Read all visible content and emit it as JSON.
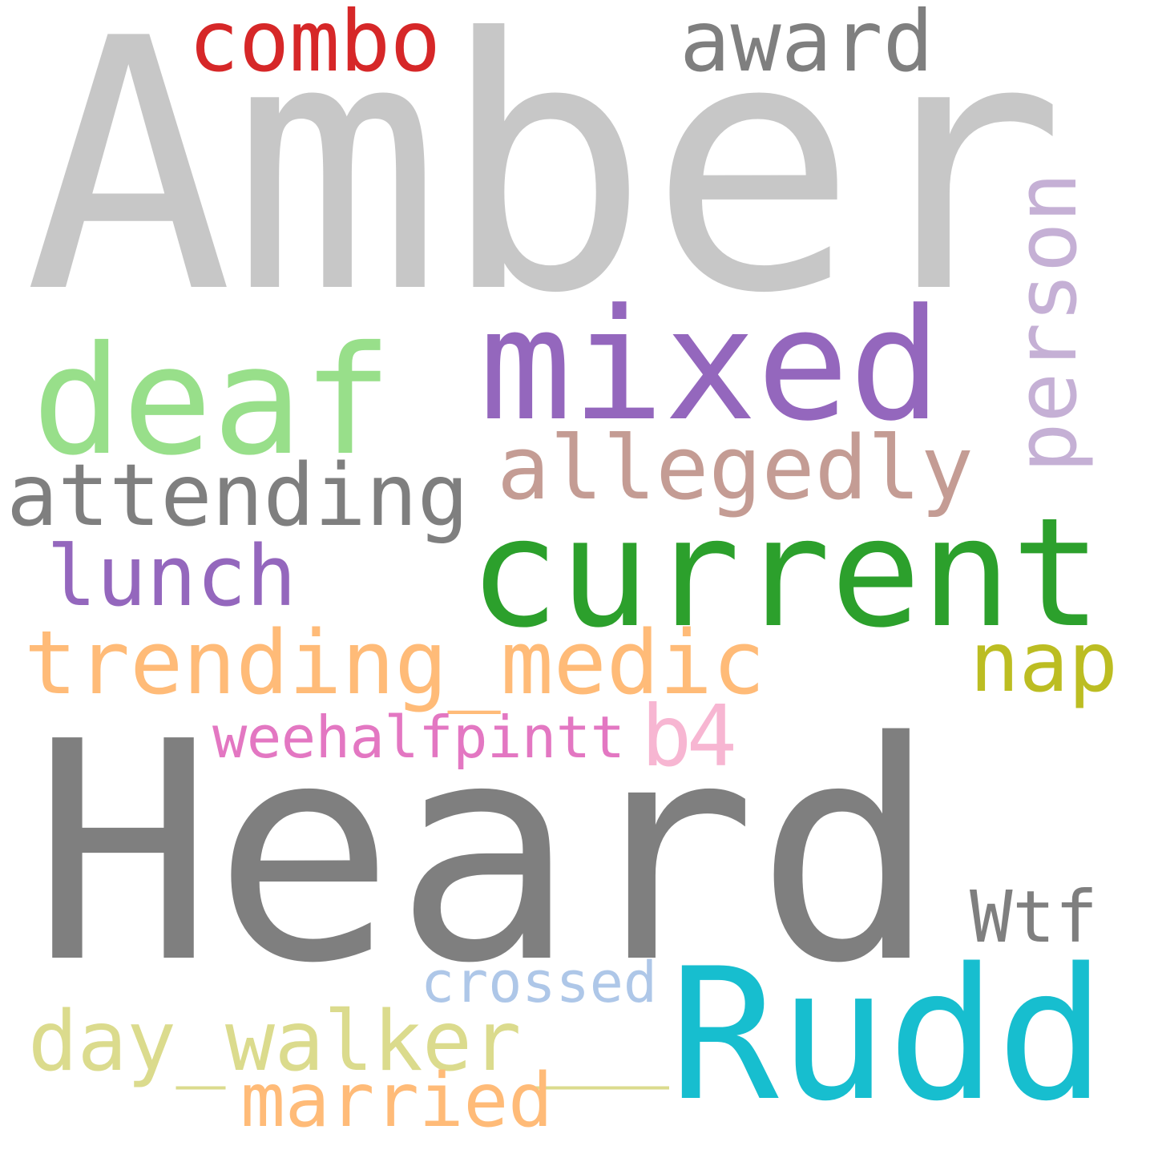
{
  "words": [
    {
      "text": "Amber",
      "color": "#c7c7c7"
    },
    {
      "text": "Heard",
      "color": "#7f7f7f"
    },
    {
      "text": "combo",
      "color": "#d62728"
    },
    {
      "text": "award",
      "color": "#7f7f7f"
    },
    {
      "text": "mixed",
      "color": "#9467bd"
    },
    {
      "text": "deaf",
      "color": "#98df8a"
    },
    {
      "text": "person",
      "color": "#c5b0d5"
    },
    {
      "text": "allegedly",
      "color": "#c49c94"
    },
    {
      "text": "attending",
      "color": "#7f7f7f"
    },
    {
      "text": "current",
      "color": "#2ca02c"
    },
    {
      "text": "lunch",
      "color": "#9467bd"
    },
    {
      "text": "trending_medic",
      "color": "#ffbb78"
    },
    {
      "text": "nap",
      "color": "#bcbd22"
    },
    {
      "text": "b4",
      "color": "#f7b6d2"
    },
    {
      "text": "weehalfpintt",
      "color": "#e377c2"
    },
    {
      "text": "Wtf",
      "color": "#7f7f7f"
    },
    {
      "text": "crossed",
      "color": "#aec7e8"
    },
    {
      "text": "Rudd",
      "color": "#17becf"
    },
    {
      "text": "day_walker___",
      "color": "#dbdb8d"
    },
    {
      "text": "married",
      "color": "#ffbb78"
    }
  ]
}
